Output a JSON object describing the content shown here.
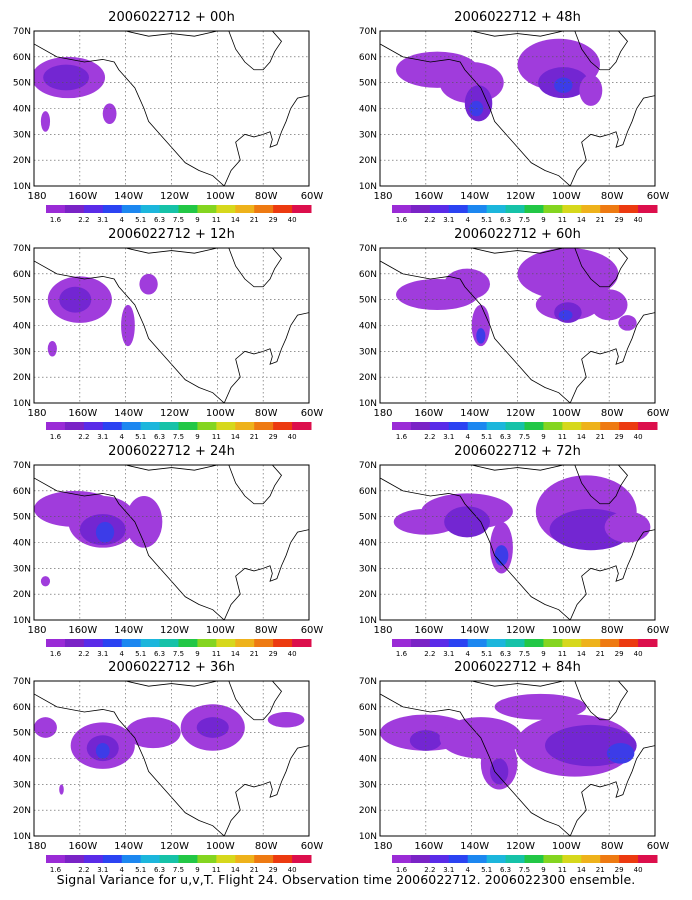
{
  "caption": "Signal Variance for u,v,T. Flight 24. Observation time 2006022712. 2006022300 ensemble.",
  "panels": [
    {
      "title": "2006022712 + 00h"
    },
    {
      "title": "2006022712 + 48h"
    },
    {
      "title": "2006022712 + 12h"
    },
    {
      "title": "2006022712 + 60h"
    },
    {
      "title": "2006022712 + 24h"
    },
    {
      "title": "2006022712 + 72h"
    },
    {
      "title": "2006022712 + 36h"
    },
    {
      "title": "2006022712 + 84h"
    }
  ],
  "lat_labels": [
    "70N",
    "60N",
    "50N",
    "40N",
    "30N",
    "20N",
    "10N"
  ],
  "lon_labels": [
    "180",
    "160W",
    "140W",
    "120W",
    "100W",
    "80W",
    "60W"
  ],
  "colorbar": {
    "labels": [
      "1.6",
      "2.2",
      "3.1",
      "4",
      "5.1",
      "6.3",
      "7.5",
      "9",
      "11",
      "14",
      "21",
      "29",
      "40"
    ],
    "colors": [
      "#9a2bd6",
      "#7a23c6",
      "#5a2be8",
      "#2b43f2",
      "#1c87f0",
      "#1cb6dc",
      "#16c2a8",
      "#22c746",
      "#84d520",
      "#d6d81c",
      "#eeb21b",
      "#ee7a12",
      "#ec3a10",
      "#dc0f4c"
    ]
  },
  "shade_colors": {
    "light": "#a03cdc",
    "medium": "#7326d2",
    "strong": "#3c3ce8",
    "stronger": "#2a74f0"
  }
}
